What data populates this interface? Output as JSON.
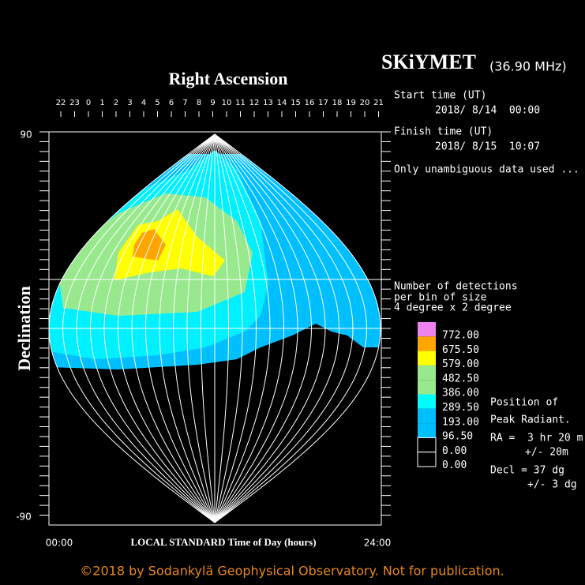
{
  "header": {
    "title": "SKiYMET",
    "frequency": "(36.90 MHz)"
  },
  "axes": {
    "top_title": "Right Ascension",
    "ra_labels": [
      22,
      23,
      0,
      1,
      2,
      3,
      4,
      5,
      6,
      7,
      8,
      9,
      10,
      11,
      12,
      13,
      14,
      15,
      16,
      17,
      18,
      19,
      20,
      21
    ],
    "dec_top": "90",
    "dec_bottom": "-90",
    "y_title": "Declination",
    "x_start": "00:00",
    "x_title": "LOCAL STANDARD Time of Day (hours)",
    "x_end": "24:00"
  },
  "info": {
    "start_label": "Start time (UT)",
    "start_value": "2018/ 8/14  00:00",
    "finish_label": "Finish time (UT)",
    "finish_value": "2018/ 8/15  10:07",
    "note": "Only unambiguous data used ...",
    "detections": [
      "Number of detections",
      "per bin of size",
      "4 degree x 2 degree"
    ]
  },
  "legend": {
    "labels": [
      "772.00",
      "675.50",
      "579.00",
      "482.50",
      "386.00",
      "289.50",
      "193.00",
      "96.50",
      "0.00",
      "0.00"
    ]
  },
  "radiant": [
    "Position of",
    "Peak Radiant.",
    "RA =  3 hr 20 m",
    "+/- 20m",
    "Decl = 37 dg",
    "+/- 3 dg"
  ],
  "footer": "©2018 by Sodankylä Geophysical Observatory. Not for publication."
}
